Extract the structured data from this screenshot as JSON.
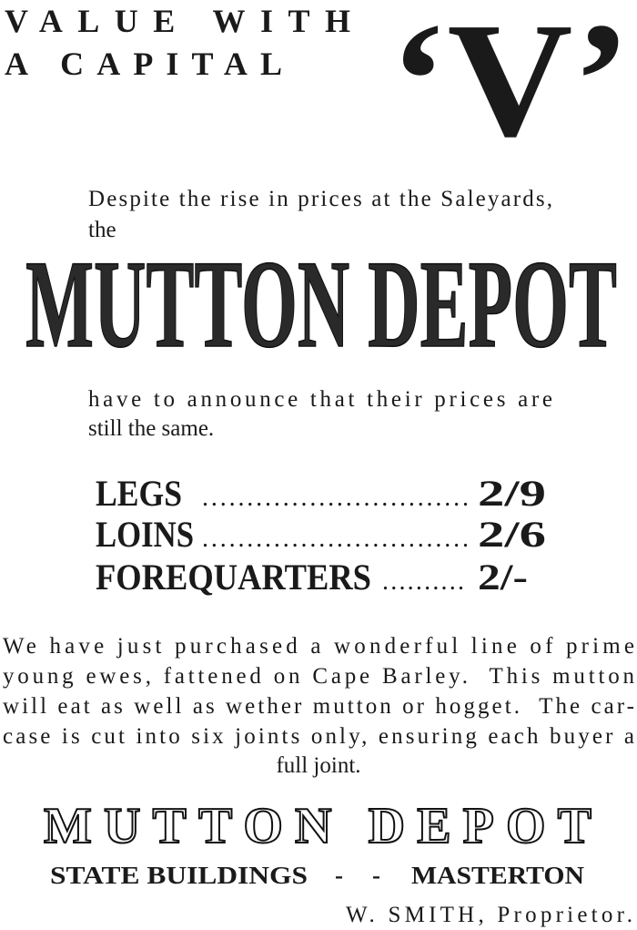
{
  "header": {
    "line1": "VALUE WITH",
    "line2": "A CAPITAL",
    "emblem": "‘V’"
  },
  "intro": {
    "line1": "Despite the rise in prices at the Saleyards,",
    "line2": "the"
  },
  "headline": "MUTTON DEPOT",
  "announcement": {
    "line1": "have to announce that their prices are",
    "line2": "still the same."
  },
  "prices": [
    {
      "item": "LEGS",
      "leader": "..............................",
      "price": "2/9"
    },
    {
      "item": "LOINS",
      "leader": "..............................",
      "price": "2/6"
    },
    {
      "item": "FOREQUARTERS",
      "leader": "..........",
      "price": "2/-"
    }
  ],
  "body": [
    "We have just purchased a wonderful line of prime",
    "young ewes, fattened on Cape Barley.  This mutton",
    "will eat as well as wether mutton or hogget.  The car-",
    "case is cut into six joints only, ensuring each buyer a",
    "full joint."
  ],
  "footer": {
    "name": "MUTTON DEPOT",
    "address_left": "STATE BUILDINGS",
    "separator": "- -",
    "address_right": "MASTERTON",
    "proprietor": "W. SMITH, Proprietor."
  }
}
